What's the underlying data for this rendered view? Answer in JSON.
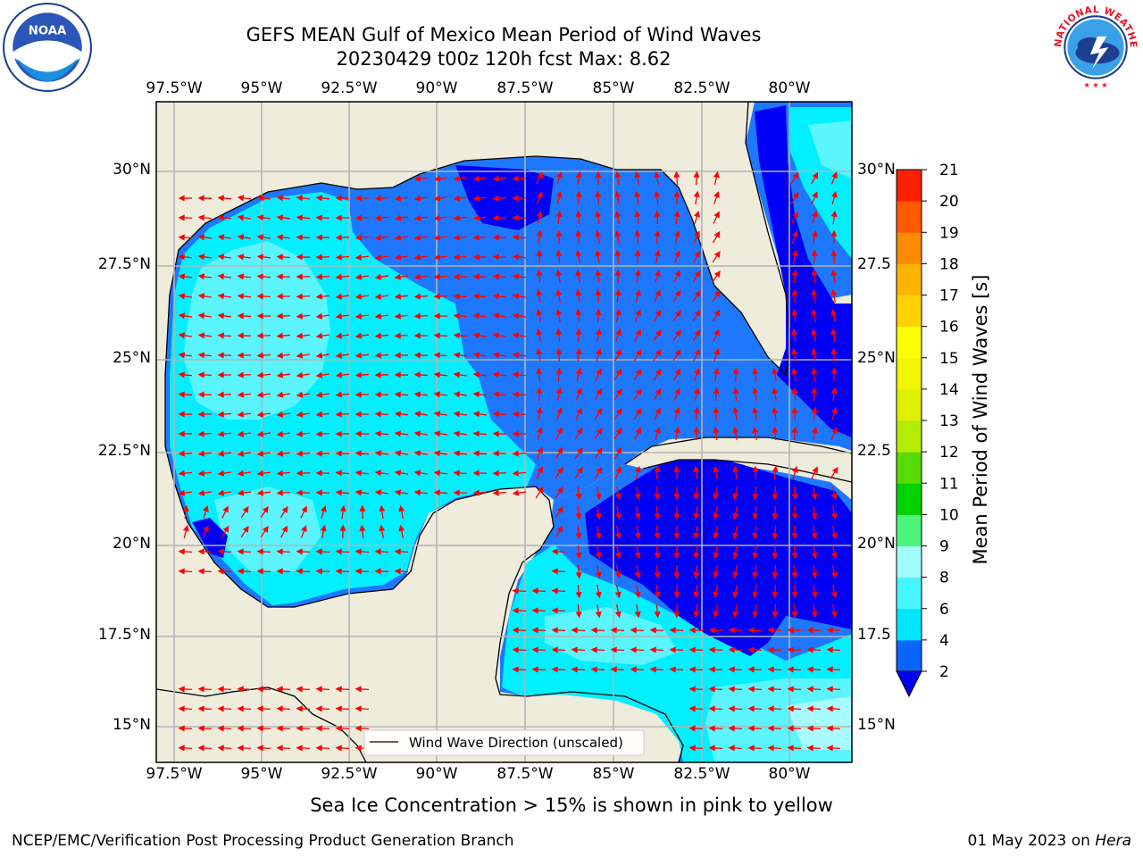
{
  "title": {
    "line1": "GEFS MEAN Gulf of Mexico Mean Period of Wind Waves",
    "line2": "20230429 t00z 120h fcst   Max: 8.62"
  },
  "logos": {
    "left": "noaa-logo",
    "left_text": "NOAA",
    "right": "nws-logo",
    "right_text": "NATIONAL WEATHER SERVICE"
  },
  "axes": {
    "lon_labels": [
      "97.5°W",
      "95°W",
      "92.5°W",
      "90°W",
      "87.5°W",
      "85°W",
      "82.5°W",
      "80°W"
    ],
    "lat_labels_left": [
      "30°N",
      "27.5°N",
      "25°N",
      "22.5°N",
      "20°N",
      "17.5°N",
      "15°N"
    ],
    "lat_labels_right": [
      "30°N",
      "27.5",
      "25°N",
      "22.5",
      "20°N",
      "17.5",
      "15°N"
    ]
  },
  "legend": {
    "label": "Wind Wave Direction (unscaled)"
  },
  "colorbar": {
    "label": "Mean Period of Wind Waves [s]",
    "ticks": [
      "2",
      "4",
      "6",
      "8",
      "9",
      "10",
      "11",
      "12",
      "13",
      "14",
      "15",
      "16",
      "17",
      "18",
      "19",
      "20",
      "21"
    ],
    "colors": [
      "#0a64ff",
      "#00e6ff",
      "#46f5ff",
      "#a0fcff",
      "#4cf57a",
      "#00d200",
      "#58dc00",
      "#b4ec00",
      "#dcf000",
      "#f2f500",
      "#ffff00",
      "#ffd200",
      "#ffb400",
      "#ff8c00",
      "#ff5a00",
      "#ff2000"
    ],
    "under_color": "#0000f5"
  },
  "map_colors": {
    "land": "#efecdc",
    "c2": "#0000f5",
    "c4": "#1e78ff",
    "c6": "#00f0ff",
    "c8": "#5af5ff",
    "c9": "#a8fbff",
    "arrow": "#ff0000",
    "grid": "#b4b4b4"
  },
  "footer": {
    "ice_note": "Sea Ice Concentration > 15% is shown in pink to yellow",
    "credit": "NCEP/EMC/Verification Post Processing Product Generation Branch",
    "date": "01 May 2023 on",
    "host": "Hera"
  }
}
